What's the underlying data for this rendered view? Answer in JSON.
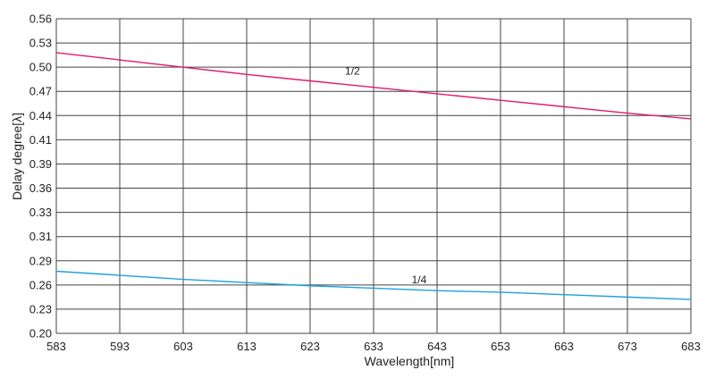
{
  "chart_data": {
    "type": "line",
    "title": "",
    "xlabel": "Wavelength[nm]",
    "ylabel": "Delay degree[λ]",
    "xlim": [
      583,
      683
    ],
    "ylim": [
      0.2,
      0.56
    ],
    "x_ticks": [
      "583",
      "593",
      "603",
      "613",
      "623",
      "633",
      "643",
      "653",
      "663",
      "673",
      "683"
    ],
    "y_ticks": [
      "0.20",
      "0.23",
      "0.26",
      "0.29",
      "0.31",
      "0.33",
      "0.36",
      "0.39",
      "0.41",
      "0.44",
      "0.47",
      "0.50",
      "0.53",
      "0.56"
    ],
    "grid": true,
    "series": [
      {
        "label": "1/2",
        "color": "#e0196e",
        "x": [
          583,
          593,
          603,
          613,
          623,
          633,
          643,
          653,
          663,
          673,
          683
        ],
        "values": [
          0.518,
          0.509,
          0.5,
          0.491,
          0.483,
          0.475,
          0.467,
          0.459,
          0.451,
          0.443,
          0.436
        ],
        "label_at": [
          628.5,
          0.491
        ]
      },
      {
        "label": "1/4",
        "color": "#1da1e0",
        "x": [
          583,
          593,
          603,
          613,
          623,
          633,
          643,
          653,
          663,
          673,
          683
        ],
        "values": [
          0.277,
          0.272,
          0.267,
          0.263,
          0.259,
          0.256,
          0.253,
          0.251,
          0.248,
          0.245,
          0.242
        ],
        "label_at": [
          639,
          0.262
        ]
      }
    ]
  }
}
